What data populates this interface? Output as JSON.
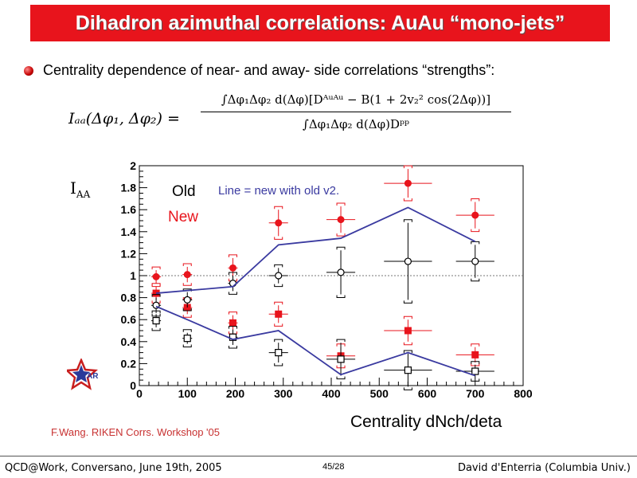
{
  "slide": {
    "title": "Dihadron azimuthal correlations: AuAu “mono-jets”",
    "bullet": "Centrality dependence of near- and away- side correlations “strengths”:",
    "formula_lhs": "Iₐₐ(Δφ₁, Δφ₂) =",
    "formula_num": "∫Δφ₁Δφ₂ d(Δφ)[Dᴬᵘᴬᵘ − B(1 + 2v₂² cos(2Δφ))]",
    "formula_den": "∫Δφ₁Δφ₂ d(Δφ)Dᵖᵖ",
    "credit": "F.Wang. RIKEN Corrs. Workshop '05",
    "footer_left": "QCD@Work, Conversano, June 19th, 2005",
    "footer_mid": "45/28",
    "footer_right": "David d'Enterria (Columbia Univ.)",
    "logo_text": "STAR"
  },
  "colors": {
    "title_bg": "#e8141c",
    "new": "#e8141c",
    "old": "#000000",
    "line": "#3a3aa0"
  },
  "chart_data": {
    "type": "scatter",
    "ylabel_main": "I",
    "ylabel_sub": "AA",
    "xlabel": "Centrality dNch/deta",
    "xlim": [
      0,
      800
    ],
    "ylim": [
      0,
      2
    ],
    "xticks": [
      "0",
      "100",
      "200",
      "300",
      "400",
      "500",
      "600",
      "700",
      "800"
    ],
    "yticks": [
      "0",
      "0.2",
      "0.4",
      "0.6",
      "0.8",
      "1",
      "1.2",
      "1.4",
      "1.6",
      "1.8",
      "2"
    ],
    "reference_line": 1,
    "legend_old": "Old",
    "legend_new": "New",
    "line_note": "Line = new with old v2.",
    "series": [
      {
        "name": "New",
        "marker": "filled-circle",
        "x": [
          35,
          100,
          195,
          290,
          420,
          560,
          700
        ],
        "y": [
          0.99,
          1.01,
          1.07,
          1.48,
          1.51,
          1.84,
          1.55
        ],
        "xerr": [
          10,
          10,
          10,
          20,
          30,
          50,
          40
        ],
        "yerr": [
          0.06,
          0.07,
          0.09,
          0.12,
          0.12,
          0.13,
          0.12
        ]
      },
      {
        "name": "New",
        "marker": "filled-square",
        "x": [
          35,
          100,
          195,
          290,
          420,
          560,
          700
        ],
        "y": [
          0.84,
          0.71,
          0.57,
          0.65,
          0.27,
          0.5,
          0.28
        ],
        "xerr": [
          10,
          10,
          10,
          20,
          30,
          50,
          40
        ],
        "yerr": [
          0.06,
          0.06,
          0.07,
          0.08,
          0.08,
          0.1,
          0.07
        ]
      },
      {
        "name": "Old",
        "marker": "open-circle",
        "x": [
          35,
          100,
          195,
          290,
          420,
          560,
          700
        ],
        "y": [
          0.73,
          0.78,
          0.93,
          1.0,
          1.03,
          1.13,
          1.13
        ],
        "xerr": [
          10,
          10,
          10,
          20,
          30,
          50,
          40
        ],
        "yerr": [
          0.07,
          0.07,
          0.07,
          0.07,
          0.2,
          0.35,
          0.15
        ]
      },
      {
        "name": "Old",
        "marker": "open-square",
        "x": [
          35,
          100,
          195,
          290,
          420,
          560,
          700
        ],
        "y": [
          0.59,
          0.43,
          0.44,
          0.3,
          0.24,
          0.14,
          0.13
        ],
        "xerr": [
          10,
          10,
          10,
          20,
          30,
          50,
          40
        ],
        "yerr": [
          0.06,
          0.05,
          0.07,
          0.09,
          0.15,
          0.15,
          0.06
        ]
      },
      {
        "name": "Line = new with old v2.",
        "marker": "line",
        "x": [
          35,
          195,
          290,
          420,
          560,
          700
        ],
        "y": [
          0.84,
          0.9,
          1.28,
          1.34,
          1.62,
          1.31
        ]
      },
      {
        "name": "Line = new with old v2.",
        "marker": "line",
        "x": [
          35,
          100,
          195,
          290,
          420,
          560,
          700
        ],
        "y": [
          0.72,
          0.6,
          0.42,
          0.5,
          0.1,
          0.3,
          0.09
        ]
      }
    ]
  }
}
